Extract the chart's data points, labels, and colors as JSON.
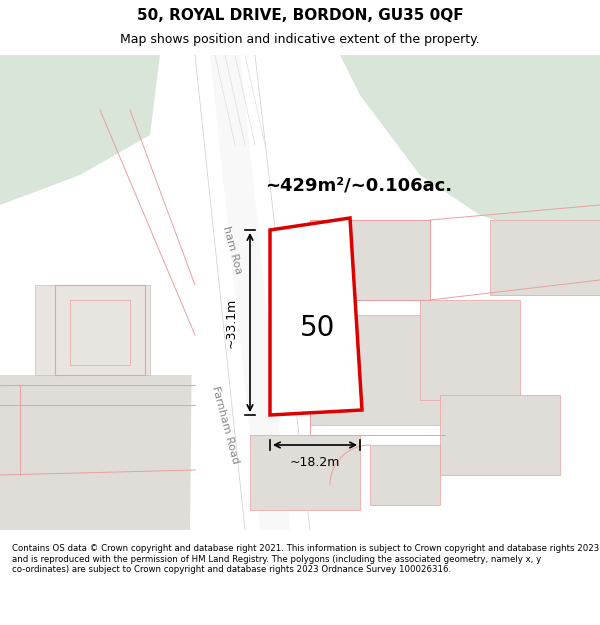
{
  "title_line1": "50, ROYAL DRIVE, BORDON, GU35 0QF",
  "title_line2": "Map shows position and indicative extent of the property.",
  "footer_text": "Contains OS data © Crown copyright and database right 2021. This information is subject to Crown copyright and database rights 2023 and is reproduced with the permission of HM Land Registry. The polygons (including the associated geometry, namely x, y co-ordinates) are subject to Crown copyright and database rights 2023 Ordnance Survey 100026316.",
  "area_label": "~429m²/~0.106ac.",
  "width_label": "~18.2m",
  "height_label": "~33.1m",
  "property_number": "50",
  "road_label": "Farnham Road",
  "road_label2": "ham Roa",
  "bg_color": "#f5f5f0",
  "green_color": "#d8e5d8",
  "road_color": "#e8e8e8",
  "road_white": "#ffffff",
  "property_fill": "#ffffff",
  "property_edge": "#dd0000",
  "building_fill": "#e8e4e0",
  "building_edge": "#e8a0a0",
  "map_bg": "#f0ede8"
}
